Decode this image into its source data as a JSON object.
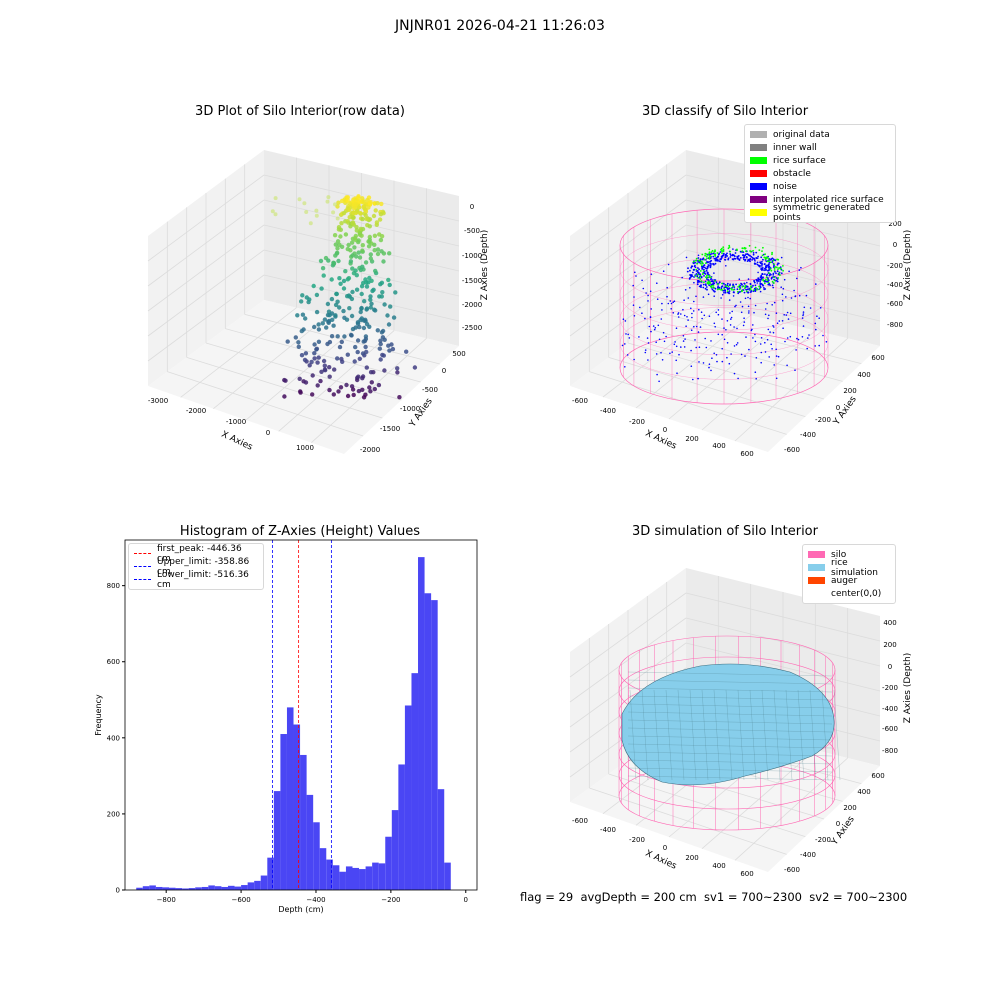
{
  "suptitle": "JNJNR01 2026-04-21 11:26:03",
  "status_line": "flag = 29  avgDepth = 200 cm  sv1 = 700~2300  sv2 = 700~2300",
  "chart_data": [
    {
      "type": "scatter",
      "title": "3D Plot of Silo Interior(row data)",
      "xlabel": "X Axies",
      "ylabel": "Y Axies",
      "zlabel": "Z Axies (Depth)",
      "x_ticks": [
        "-3000",
        "-2000",
        "-1000",
        "0",
        "1000"
      ],
      "y_ticks": [
        "500",
        "0",
        "-500",
        "-1000",
        "-1500",
        "-2000"
      ],
      "z_ticks": [
        "0",
        "-500",
        "-1000",
        "-1500",
        "-2000",
        "-2500"
      ],
      "colormap": "viridis (by depth)",
      "colors": {
        "high": "#fde725",
        "mid": "#21918c",
        "low": "#440154"
      }
    },
    {
      "type": "scatter",
      "title": "3D classify of Silo Interior",
      "xlabel": "X Axies",
      "ylabel": "Y Axies",
      "zlabel": "Z Axies (Depth)",
      "x_ticks": [
        "-600",
        "-400",
        "-200",
        "0",
        "200",
        "400",
        "600"
      ],
      "y_ticks": [
        "600",
        "400",
        "200",
        "0",
        "-200",
        "-400",
        "-600"
      ],
      "z_ticks": [
        "200",
        "0",
        "-200",
        "-400",
        "-600",
        "-800"
      ],
      "legend": [
        {
          "label": "original data",
          "color": "#b0b0b0"
        },
        {
          "label": "inner wall",
          "color": "#808080"
        },
        {
          "label": "rice surface",
          "color": "#00ff00"
        },
        {
          "label": "obstacle",
          "color": "#ff0000"
        },
        {
          "label": "noise",
          "color": "#0000ff"
        },
        {
          "label": "interpolated rice surface",
          "color": "#800080"
        },
        {
          "label": "symmetric generated points",
          "color": "#ffff00"
        }
      ],
      "wireframe_color": "#ff69b4",
      "legend_position": "top-right"
    },
    {
      "type": "bar",
      "title": "Histogram of Z-Axies (Height) Values",
      "xlabel": "Depth (cm)",
      "ylabel": "Frequency",
      "xlim": [
        -910,
        30
      ],
      "ylim": [
        0,
        920
      ],
      "x_ticks": [
        -800,
        -600,
        -400,
        -200,
        0
      ],
      "y_ticks": [
        0,
        200,
        400,
        600,
        800
      ],
      "bar_color": "#4a46f4",
      "bin_start": -880,
      "bin_width": 17.5,
      "values": [
        6,
        10,
        12,
        8,
        7,
        6,
        5,
        4,
        5,
        7,
        8,
        12,
        10,
        8,
        11,
        9,
        13,
        20,
        24,
        38,
        85,
        260,
        410,
        480,
        435,
        355,
        250,
        178,
        110,
        80,
        65,
        48,
        62,
        58,
        55,
        62,
        72,
        70,
        140,
        210,
        330,
        485,
        570,
        875,
        780,
        762,
        265,
        72
      ],
      "vlines": [
        {
          "label": "first_peak: -446.36 cm",
          "x": -446.36,
          "color": "#ff0000"
        },
        {
          "label": "Upper_limit: -358.86 cm",
          "x": -358.86,
          "color": "#0000ff"
        },
        {
          "label": "Lower_limit: -516.36 cm",
          "x": -516.36,
          "color": "#0000ff"
        }
      ],
      "legend_position": "top-left"
    },
    {
      "type": "area",
      "title": "3D simulation of Silo Interior",
      "xlabel": "X Axies",
      "ylabel": "Y Axies",
      "zlabel": "Z Axies (Depth)",
      "x_ticks": [
        "-600",
        "-400",
        "-200",
        "0",
        "200",
        "400",
        "600"
      ],
      "y_ticks": [
        "600",
        "400",
        "200",
        "0",
        "-200",
        "-400",
        "-600"
      ],
      "z_ticks": [
        "400",
        "200",
        "0",
        "-200",
        "-400",
        "-600",
        "-800"
      ],
      "legend": [
        {
          "label": "silo",
          "color": "#ff69b4"
        },
        {
          "label": "rice simulation",
          "color": "#87ceeb"
        },
        {
          "label": "auger",
          "color": "#ff4500"
        },
        {
          "label": "center(0,0)",
          "color": "#ffffff"
        }
      ],
      "legend_position": "top-right"
    }
  ]
}
